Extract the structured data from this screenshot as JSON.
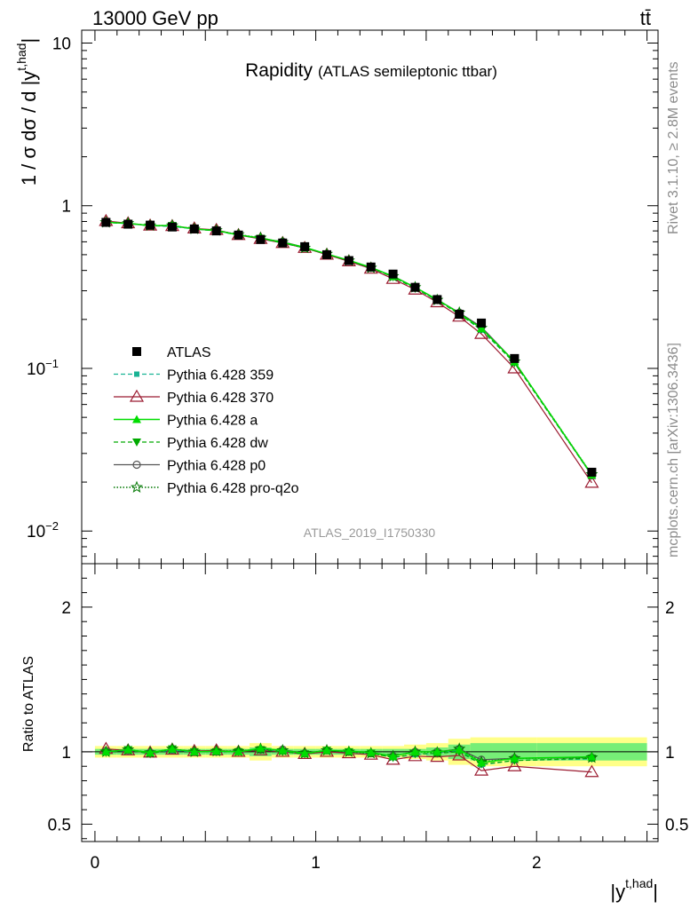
{
  "header": {
    "energy_label": "13000 GeV pp",
    "process_label": "tt̄"
  },
  "side_labels": {
    "rivet": "Rivet 3.1.10, ≥ 2.8M events",
    "mcplots": "mcplots.cern.ch [arXiv:1306.3436]"
  },
  "plot_id": "ATLAS_2019_I1750330",
  "colors": {
    "atlas": "#000000",
    "p359": "#19b394",
    "p370": "#9b1b30",
    "pa": "#00dd00",
    "pdw": "#00aa00",
    "pp0": "#555555",
    "pq2o": "#007700",
    "band_outer": "#ffff88",
    "band_inner": "#77ee77"
  },
  "chart_data": [
    {
      "type": "line",
      "title": "Rapidity",
      "subtitle": "(ATLAS semileptonic ttbar)",
      "ylabel": "1 / σ dσ / d |y^{t,had}|",
      "ylog": true,
      "ylim": [
        0.0063,
        12
      ],
      "xlim": [
        -0.06,
        2.55
      ],
      "ytick_labels": [
        "10⁻²",
        "10⁻¹",
        "1",
        "10"
      ],
      "legend_position": "center-left",
      "x": [
        0.05,
        0.15,
        0.25,
        0.35,
        0.45,
        0.55,
        0.65,
        0.75,
        0.85,
        0.95,
        1.05,
        1.15,
        1.25,
        1.35,
        1.45,
        1.55,
        1.65,
        1.75,
        1.9,
        2.25
      ],
      "series": [
        {
          "name": "ATLAS",
          "key": "atlas",
          "values": [
            0.79,
            0.77,
            0.76,
            0.74,
            0.72,
            0.7,
            0.66,
            0.62,
            0.59,
            0.56,
            0.5,
            0.46,
            0.42,
            0.38,
            0.315,
            0.265,
            0.215,
            0.19,
            0.115,
            0.023
          ]
        },
        {
          "name": "Pythia 6.428 359",
          "key": "p359",
          "values": [
            0.79,
            0.775,
            0.755,
            0.745,
            0.72,
            0.7,
            0.66,
            0.63,
            0.59,
            0.55,
            0.505,
            0.46,
            0.415,
            0.365,
            0.31,
            0.262,
            0.216,
            0.172,
            0.108,
            0.022
          ]
        },
        {
          "name": "Pythia 6.428 370",
          "key": "p370",
          "values": [
            0.805,
            0.78,
            0.755,
            0.75,
            0.725,
            0.71,
            0.66,
            0.625,
            0.59,
            0.55,
            0.5,
            0.455,
            0.41,
            0.355,
            0.305,
            0.255,
            0.208,
            0.163,
            0.1,
            0.0198
          ]
        },
        {
          "name": "Pythia 6.428 a",
          "key": "pa",
          "values": [
            0.79,
            0.78,
            0.755,
            0.755,
            0.72,
            0.705,
            0.66,
            0.635,
            0.595,
            0.555,
            0.505,
            0.462,
            0.418,
            0.368,
            0.315,
            0.265,
            0.218,
            0.176,
            0.11,
            0.0222
          ]
        },
        {
          "name": "Pythia 6.428 dw",
          "key": "pdw",
          "values": [
            0.785,
            0.78,
            0.75,
            0.755,
            0.72,
            0.7,
            0.66,
            0.63,
            0.59,
            0.55,
            0.505,
            0.46,
            0.415,
            0.365,
            0.31,
            0.263,
            0.215,
            0.174,
            0.108,
            0.022
          ]
        },
        {
          "name": "Pythia 6.428 p0",
          "key": "pp0",
          "values": [
            0.795,
            0.775,
            0.755,
            0.75,
            0.72,
            0.7,
            0.665,
            0.63,
            0.6,
            0.555,
            0.505,
            0.46,
            0.415,
            0.37,
            0.315,
            0.265,
            0.22,
            0.18,
            0.11,
            0.022
          ]
        },
        {
          "name": "Pythia 6.428 pro-q2o",
          "key": "pq2o",
          "values": [
            0.79,
            0.78,
            0.755,
            0.755,
            0.72,
            0.705,
            0.665,
            0.635,
            0.595,
            0.55,
            0.505,
            0.46,
            0.415,
            0.368,
            0.315,
            0.263,
            0.22,
            0.177,
            0.11,
            0.0223
          ]
        }
      ]
    },
    {
      "type": "line",
      "ylabel": "Ratio to ATLAS",
      "xlabel": "|y^{t,had}|",
      "ylim": [
        0.38,
        2.3
      ],
      "xlim": [
        -0.06,
        2.55
      ],
      "ytick_labels": [
        "0.5",
        "1",
        "2"
      ],
      "xtick_labels": [
        "0",
        "1",
        "2"
      ],
      "x": [
        0.05,
        0.15,
        0.25,
        0.35,
        0.45,
        0.55,
        0.65,
        0.75,
        0.85,
        0.95,
        1.05,
        1.15,
        1.25,
        1.35,
        1.45,
        1.55,
        1.65,
        1.75,
        1.9,
        2.25
      ],
      "band_edges": [
        0.0,
        0.1,
        0.2,
        0.3,
        0.4,
        0.5,
        0.6,
        0.7,
        0.8,
        0.9,
        1.0,
        1.1,
        1.2,
        1.3,
        1.4,
        1.5,
        1.6,
        1.7,
        1.8,
        2.0,
        2.5
      ],
      "band_stat": [
        0.02,
        0.02,
        0.02,
        0.02,
        0.02,
        0.02,
        0.02,
        0.03,
        0.02,
        0.02,
        0.02,
        0.02,
        0.02,
        0.02,
        0.02,
        0.03,
        0.05,
        0.06,
        0.06,
        0.06
      ],
      "band_total": [
        0.04,
        0.04,
        0.04,
        0.04,
        0.04,
        0.04,
        0.04,
        0.06,
        0.04,
        0.04,
        0.04,
        0.04,
        0.04,
        0.04,
        0.05,
        0.06,
        0.09,
        0.1,
        0.1,
        0.1
      ],
      "series": [
        {
          "name": "Pythia 6.428 359",
          "key": "p359",
          "values": [
            1.0,
            1.01,
            0.995,
            1.01,
            1.0,
            1.0,
            1.0,
            1.02,
            1.0,
            0.99,
            1.01,
            1.0,
            0.99,
            0.96,
            0.98,
            0.99,
            1.01,
            0.91,
            0.94,
            0.95
          ]
        },
        {
          "name": "Pythia 6.428 370",
          "key": "p370",
          "values": [
            1.02,
            1.01,
            0.995,
            1.015,
            1.005,
            1.01,
            1.0,
            1.01,
            1.0,
            0.985,
            1.0,
            0.99,
            0.98,
            0.945,
            0.97,
            0.965,
            0.975,
            0.87,
            0.9,
            0.86
          ]
        },
        {
          "name": "Pythia 6.428 a",
          "key": "pa",
          "values": [
            1.0,
            1.015,
            0.995,
            1.02,
            1.0,
            1.005,
            1.0,
            1.025,
            1.01,
            0.99,
            1.01,
            1.005,
            0.995,
            0.97,
            1.0,
            1.0,
            1.015,
            0.925,
            0.955,
            0.965
          ]
        },
        {
          "name": "Pythia 6.428 dw",
          "key": "pdw",
          "values": [
            0.995,
            1.015,
            0.985,
            1.02,
            1.0,
            1.0,
            1.0,
            1.015,
            1.0,
            0.985,
            1.01,
            1.0,
            0.99,
            0.96,
            0.985,
            0.99,
            1.0,
            0.915,
            0.94,
            0.955
          ]
        },
        {
          "name": "Pythia 6.428 p0",
          "key": "pp0",
          "values": [
            1.005,
            1.01,
            0.995,
            1.015,
            1.0,
            1.0,
            1.005,
            1.015,
            1.015,
            0.99,
            1.01,
            1.0,
            0.99,
            0.97,
            1.0,
            1.0,
            1.02,
            0.945,
            0.955,
            0.96
          ]
        },
        {
          "name": "Pythia 6.428 pro-q2o",
          "key": "pq2o",
          "values": [
            1.0,
            1.015,
            0.995,
            1.02,
            1.0,
            1.005,
            1.005,
            1.02,
            1.01,
            0.99,
            1.01,
            1.0,
            0.99,
            0.97,
            1.0,
            0.995,
            1.02,
            0.93,
            0.955,
            0.96
          ]
        }
      ]
    }
  ]
}
